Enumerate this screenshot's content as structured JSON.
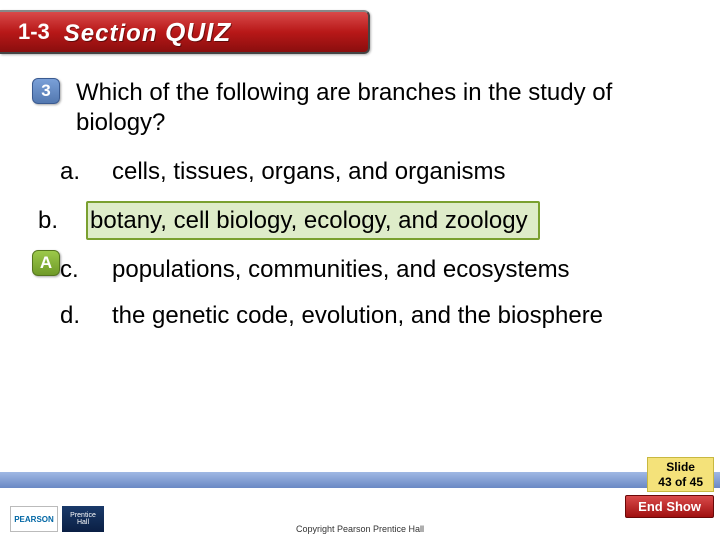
{
  "header": {
    "section_number": "1-3",
    "label_section": "Section",
    "label_quiz": "QUIZ",
    "bg_gradient": [
      "#d94a4a",
      "#b81818",
      "#8a0e0e"
    ],
    "text_color": "#ffffff"
  },
  "question": {
    "number": "3",
    "badge_bg": [
      "#7aa0d8",
      "#5378b0"
    ],
    "text": "Which of the following are branches in the study of biology?",
    "font_size": 24
  },
  "answer_badge": {
    "letter": "A",
    "bg": [
      "#9cc94a",
      "#6f9a28"
    ]
  },
  "options": [
    {
      "prefix": "a.",
      "text": "cells, tissues, organs, and organisms",
      "highlight": false
    },
    {
      "prefix": "b.",
      "text": "botany, cell biology, ecology, and zoology",
      "highlight": true
    },
    {
      "prefix": "c.",
      "text": "populations, communities, and ecosystems",
      "highlight": false
    },
    {
      "prefix": "d.",
      "text": "the genetic code, evolution, and the biosphere",
      "highlight": false
    }
  ],
  "highlight": {
    "border_color": "#7aa030",
    "fill_color": "rgba(160,200,100,0.35)"
  },
  "footer": {
    "bar_gradient": [
      "#a0b8e4",
      "#6a88c4"
    ],
    "slide_label": "Slide",
    "slide_current": 43,
    "slide_of": "of",
    "slide_total": 45,
    "slide_bg": "#f4e27a",
    "end_show_label": "End Show",
    "end_show_bg": [
      "#d94a4a",
      "#a01010"
    ],
    "logo_pearson": "PEARSON",
    "logo_ph_line1": "Prentice",
    "logo_ph_line2": "Hall",
    "copyright": "Copyright Pearson Prentice Hall"
  }
}
